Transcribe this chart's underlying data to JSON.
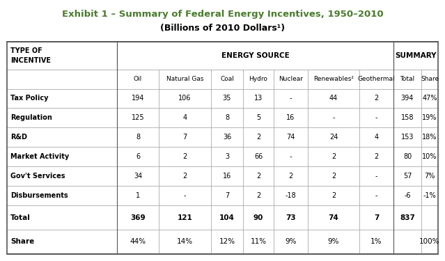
{
  "title1": "Exhibit 1 – Summary of Federal Energy Incentives, 1950–2010",
  "title2": "(Billions of 2010 Dollars¹)",
  "title_color": "#4a7c2f",
  "col_headers_row2": [
    "",
    "Oil",
    "Natural Gas",
    "Coal",
    "Hydro",
    "Nuclear",
    "Renewables²",
    "Geothermal",
    "Total",
    "Share"
  ],
  "rows": [
    [
      "Tax Policy",
      "194",
      "106",
      "35",
      "13",
      "-",
      "44",
      "2",
      "394",
      "47%"
    ],
    [
      "Regulation",
      "125",
      "4",
      "8",
      "5",
      "16",
      "-",
      "-",
      "158",
      "19%"
    ],
    [
      "R&D",
      "8",
      "7",
      "36",
      "2",
      "74",
      "24",
      "4",
      "153",
      "18%"
    ],
    [
      "Market Activity",
      "6",
      "2",
      "3",
      "66",
      "-",
      "2",
      "2",
      "80",
      "10%"
    ],
    [
      "Gov't Services",
      "34",
      "2",
      "16",
      "2",
      "2",
      "2",
      "-",
      "57",
      "7%"
    ],
    [
      "Disbursements",
      "1",
      "-",
      "7",
      "2",
      "-18",
      "2",
      "-",
      "-6",
      "-1%"
    ]
  ],
  "total_row": [
    "Total",
    "369",
    "121",
    "104",
    "90",
    "73",
    "74",
    "7",
    "837",
    ""
  ],
  "share_row": [
    "Share",
    "44%",
    "14%",
    "12%",
    "11%",
    "9%",
    "9%",
    "1%",
    "",
    "100%"
  ],
  "bg_color": "#ffffff",
  "grid_color": "#aaaaaa",
  "text_color": "#000000",
  "title_color2": "#000000"
}
